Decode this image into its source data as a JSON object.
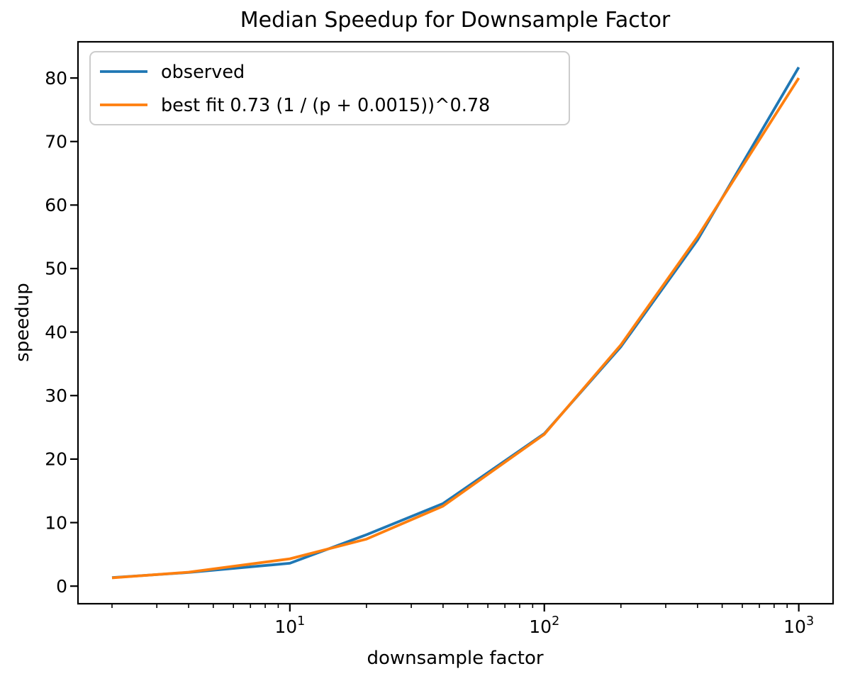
{
  "chart_data": {
    "type": "line",
    "title": "Median Speedup for Downsample Factor",
    "xlabel": "downsample factor",
    "ylabel": "speedup",
    "x_scale": "log",
    "grid": false,
    "legend_position": "upper left",
    "x": [
      2,
      4,
      10,
      20,
      40,
      100,
      200,
      400,
      1000
    ],
    "series": [
      {
        "name": "observed",
        "color": "#1f77b4",
        "values": [
          1.35,
          2.15,
          3.6,
          8.1,
          13.0,
          24.0,
          37.7,
          54.5,
          81.7
        ]
      },
      {
        "name": "best fit 0.73 (1 / (p + 0.0015))^0.78",
        "color": "#ff7f0e",
        "values": [
          1.3,
          2.2,
          4.3,
          7.4,
          12.6,
          23.9,
          38.0,
          55.0,
          80.0
        ]
      }
    ],
    "xlim": [
      1.47,
      1364
    ],
    "ylim": [
      -2.77,
      85.7
    ],
    "x_major_ticks": [
      10,
      100,
      1000
    ],
    "y_ticks": [
      0,
      10,
      20,
      30,
      40,
      50,
      60,
      70,
      80
    ]
  },
  "colors": {
    "background": "#ffffff",
    "axis": "#000000",
    "legend_border": "#cccccc"
  }
}
